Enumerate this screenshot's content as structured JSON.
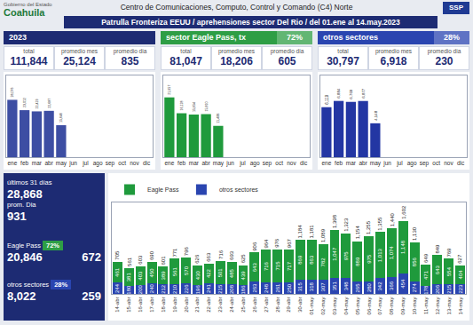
{
  "header": {
    "logo": "Coahuila",
    "logo_caption": "Gobierno del Estado",
    "agency": "SSP",
    "title": "Centro de Comunicaciones, Computo, Control y Comando (C4) Norte",
    "subtitle": "Patrulla Fronteriza EEUU / aprehensiones sector Del Rio / del 01.ene al 14.may.2023"
  },
  "sections": [
    {
      "title": "2023",
      "color": "#1d2b73",
      "kpis": [
        {
          "label": "total",
          "value": "111,844"
        },
        {
          "label": "promedio mes",
          "value": "25,124"
        },
        {
          "label": "promedio dia",
          "value": "835"
        }
      ]
    },
    {
      "title": "sector Eagle Pass, tx",
      "share": "72%",
      "color": "#2e9e45",
      "kpis": [
        {
          "label": "total",
          "value": "81,047"
        },
        {
          "label": "promedio mes",
          "value": "18,206"
        },
        {
          "label": "promedio dia",
          "value": "605"
        }
      ]
    },
    {
      "title": "otros sectores",
      "share": "28%",
      "color": "#2a45b0",
      "kpis": [
        {
          "label": "total",
          "value": "30,797"
        },
        {
          "label": "promedio mes",
          "value": "6,918"
        },
        {
          "label": "promedio dia",
          "value": "230"
        }
      ]
    }
  ],
  "last_31_days": {
    "title": "últimos 31 días",
    "value": "28,868",
    "avg_label": "prom. Dia",
    "avg": "931",
    "rows": [
      {
        "label": "Eagle Pass",
        "share": "72%",
        "color": "#2e9e45",
        "value": "20,846",
        "avg": "672"
      },
      {
        "label": "otros sectores",
        "share": "28%",
        "color": "#2a45b0",
        "value": "8,022",
        "avg": "259"
      }
    ]
  },
  "chart_data": [
    {
      "type": "bar",
      "categories": [
        "ene",
        "feb",
        "mar",
        "abr",
        "may",
        "jun",
        "jul",
        "ago",
        "sep",
        "oct",
        "nov",
        "dic"
      ],
      "values": [
        28076,
        23012,
        22423,
        22687,
        15646,
        null,
        null,
        null,
        null,
        null,
        null,
        null
      ],
      "value_labels": [
        "28,076",
        "23,012",
        "22,423",
        "22,687",
        "15,646",
        null,
        null,
        null,
        null,
        null,
        null,
        null
      ],
      "color": "#3d4ea3",
      "ylim": [
        0,
        40000
      ],
      "data_labels": true,
      "tick_labels": "x",
      "grid": false
    },
    {
      "type": "bar",
      "categories": [
        "ene",
        "feb",
        "mar",
        "abr",
        "may",
        "jun",
        "jul",
        "ago",
        "sep",
        "oct",
        "nov",
        "dic"
      ],
      "values": [
        21957,
        16128,
        15654,
        15810,
        11498,
        null,
        null,
        null,
        null,
        null,
        null,
        null
      ],
      "value_labels": [
        "21,957",
        "16,128",
        "15,654",
        "15,810",
        "11,498",
        null,
        null,
        null,
        null,
        null,
        null,
        null
      ],
      "color": "#1f9a3c",
      "ylim": [
        0,
        30000
      ],
      "data_labels": true,
      "tick_labels": "x",
      "grid": false
    },
    {
      "type": "bar",
      "categories": [
        "ene",
        "feb",
        "mar",
        "abr",
        "may",
        "jun",
        "jul",
        "ago",
        "sep",
        "oct",
        "nov",
        "dic"
      ],
      "values": [
        6119,
        6884,
        6769,
        6877,
        4148,
        null,
        null,
        null,
        null,
        null,
        null,
        null
      ],
      "value_labels": [
        "6,119",
        "6,884",
        "6,769",
        "6,877",
        "4,148",
        null,
        null,
        null,
        null,
        null,
        null,
        null
      ],
      "color": "#2336a3",
      "ylim": [
        0,
        10000
      ],
      "data_labels": true,
      "tick_labels": "x",
      "grid": false
    },
    {
      "type": "bar",
      "stacked": true,
      "data_labels": true,
      "tick_labels": "x",
      "grid": false,
      "legend": "top left",
      "categories": [
        "14-abr",
        "15-abr",
        "16-abr",
        "17-abr",
        "18-abr",
        "19-abr",
        "20-abr",
        "21-abr",
        "22-abr",
        "23-abr",
        "24-abr",
        "25-abr",
        "26-abr",
        "27-abr",
        "28-abr",
        "29-abr",
        "30-abr",
        "01-may",
        "02-may",
        "03-may",
        "04-may",
        "05-may",
        "06-may",
        "07-may",
        "08-may",
        "09-may",
        "10-may",
        "11-may",
        "12-may",
        "13-may",
        "14-may"
      ],
      "series": [
        {
          "name": "otros sectores",
          "color": "#2a45b0",
          "values": [
            244,
            180,
            200,
            240,
            212,
            210,
            226,
            196,
            241,
            215,
            208,
            186,
            263,
            248,
            261,
            250,
            315,
            318,
            307,
            351,
            348,
            265,
            280,
            342,
            366,
            454,
            274,
            178,
            206,
            215,
            223
          ]
        },
        {
          "name": "Eagle Pass",
          "color": "#1f9a3c",
          "values": [
            461,
            381,
            403,
            450,
            389,
            561,
            570,
            430,
            422,
            501,
            485,
            439,
            643,
            716,
            715,
            717,
            869,
            863,
            782,
            1047,
            975,
            889,
            975,
            1013,
            1074,
            1148,
            856,
            471,
            643,
            554,
            404
          ],
          "value_labels": [
            "461",
            "381",
            "403",
            "450",
            "389",
            "561",
            "570",
            "430",
            "422",
            "501",
            "485",
            "439",
            "643",
            "716",
            "715",
            "717",
            "869",
            "863",
            "782",
            "1,047",
            "975",
            "889",
            "975",
            "1,013",
            "1,074",
            "1,148",
            "856",
            "471",
            "643",
            "554",
            "404"
          ]
        }
      ],
      "totals": [
        705,
        561,
        603,
        690,
        601,
        771,
        796,
        626,
        663,
        716,
        693,
        625,
        906,
        964,
        976,
        967,
        1184,
        1181,
        1089,
        1398,
        1323,
        1154,
        1255,
        1355,
        1440,
        1602,
        1130,
        649,
        849,
        769,
        627
      ],
      "total_labels": [
        "705",
        "561",
        "603",
        "690",
        "601",
        "771",
        "796",
        "626",
        "663",
        "716",
        "693",
        "625",
        "906",
        "964",
        "976",
        "967",
        "1,184",
        "1,181",
        "1,089",
        "1,398",
        "1,323",
        "1,154",
        "1,255",
        "1,355",
        "1,440",
        "1,602",
        "1,130",
        "649",
        "849",
        "769",
        "627"
      ],
      "ylim": [
        0,
        2000
      ]
    }
  ]
}
